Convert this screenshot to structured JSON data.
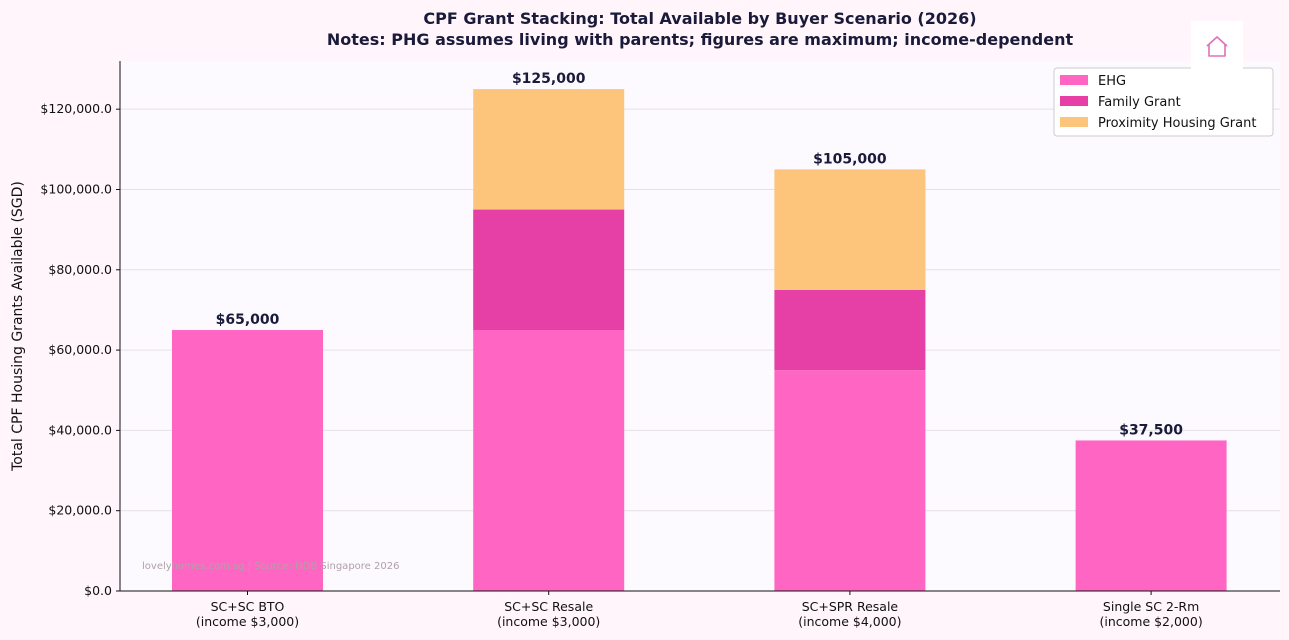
{
  "chart_data": {
    "type": "bar",
    "stacked": true,
    "title": "CPF Grant Stacking: Total Available by Buyer Scenario (2026)",
    "subtitle": "Notes: PHG assumes living with parents; figures are maximum; income-dependent",
    "xlabel": "",
    "ylabel": "Total CPF Housing Grants Available (SGD)",
    "ylim": [
      0,
      132000
    ],
    "yticks": [
      0,
      20000,
      40000,
      60000,
      80000,
      100000,
      120000
    ],
    "ytick_labels": [
      "$0.0",
      "$20,000.0",
      "$40,000.0",
      "$60,000.0",
      "$80,000.0",
      "$100,000.0",
      "$120,000.0"
    ],
    "grid": "horizontal",
    "legend_position": "top-right",
    "categories": [
      [
        "SC+SC BTO",
        "(income $3,000)"
      ],
      [
        "SC+SC Resale",
        "(income $3,000)"
      ],
      [
        "SC+SPR Resale",
        "(income $4,000)"
      ],
      [
        "Single SC 2-Rm",
        "(income $2,000)"
      ]
    ],
    "series": [
      {
        "name": "EHG",
        "color": "#ff66c4",
        "values": [
          65000,
          65000,
          55000,
          37500
        ]
      },
      {
        "name": "Family Grant",
        "color": "#e63fa6",
        "values": [
          0,
          30000,
          20000,
          0
        ]
      },
      {
        "name": "Proximity Housing Grant",
        "color": "#fdc57b",
        "values": [
          0,
          30000,
          30000,
          0
        ]
      }
    ],
    "totals": [
      "$65,000",
      "$125,000",
      "$105,000",
      "$37,500"
    ],
    "watermark": "lovelyhomes.com.sg | Source: HDB Singapore 2026"
  },
  "home_icon": "home-icon"
}
